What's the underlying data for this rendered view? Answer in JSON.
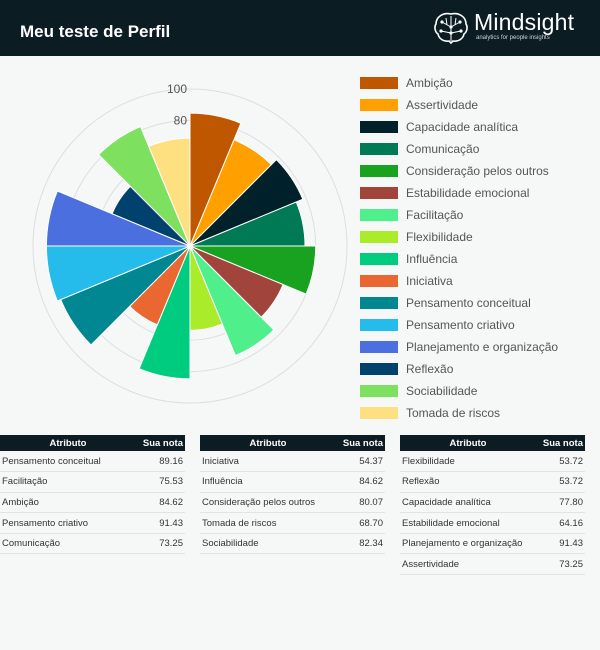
{
  "header": {
    "title": "Meu teste de Perfil"
  },
  "logo": {
    "name": "Mindsight",
    "tagline": "analytics for people insights",
    "icon": "brain-icon"
  },
  "colors": {
    "header_bg": "#0b1c23",
    "page_bg": "#f6f7f7"
  },
  "chart_data": {
    "type": "polar-area",
    "title": "",
    "rlim": [
      0,
      100
    ],
    "r_ticks": [
      80,
      100
    ],
    "grid": true,
    "legend_placement": "right",
    "categories": [
      "Ambição",
      "Assertividade",
      "Capacidade analítica",
      "Comunicação",
      "Consideração pelos outros",
      "Estabilidade emocional",
      "Facilitação",
      "Flexibilidade",
      "Influência",
      "Iniciativa",
      "Pensamento conceitual",
      "Pensamento criativo",
      "Planejamento e organização",
      "Reflexão",
      "Sociabilidade",
      "Tomada de riscos"
    ],
    "values": [
      84.62,
      73.25,
      77.8,
      73.25,
      80.07,
      64.16,
      75.53,
      53.72,
      84.62,
      54.37,
      89.16,
      91.43,
      91.43,
      53.72,
      82.34,
      68.7
    ],
    "colors": [
      "#bf5700",
      "#ffa000",
      "#00212a",
      "#007a54",
      "#18a21f",
      "#a1453c",
      "#4ff08c",
      "#aaeb2a",
      "#00cc80",
      "#ea6731",
      "#008791",
      "#25bbeb",
      "#4b6fdf",
      "#00416d",
      "#7de05f",
      "#ffe080"
    ]
  },
  "tables": [
    {
      "headers": [
        "Atributo",
        "Sua nota"
      ],
      "rows": [
        [
          "Pensamento conceitual",
          "89.16"
        ],
        [
          "Facilitação",
          "75.53"
        ],
        [
          "Ambição",
          "84.62"
        ],
        [
          "Pensamento criativo",
          "91.43"
        ],
        [
          "Comunicação",
          "73.25"
        ]
      ]
    },
    {
      "headers": [
        "Atributo",
        "Sua nota"
      ],
      "rows": [
        [
          "Iniciativa",
          "54.37"
        ],
        [
          "Influência",
          "84.62"
        ],
        [
          "Consideração pelos outros",
          "80.07"
        ],
        [
          "Tomada de riscos",
          "68.70"
        ],
        [
          "Sociabilidade",
          "82.34"
        ]
      ]
    },
    {
      "headers": [
        "Atributo",
        "Sua nota"
      ],
      "rows": [
        [
          "Flexibilidade",
          "53.72"
        ],
        [
          "Reflexão",
          "53.72"
        ],
        [
          "Capacidade analítica",
          "77.80"
        ],
        [
          "Estabilidade emocional",
          "64.16"
        ],
        [
          "Planejamento e organização",
          "91.43"
        ],
        [
          "Assertividade",
          "73.25"
        ]
      ]
    }
  ]
}
